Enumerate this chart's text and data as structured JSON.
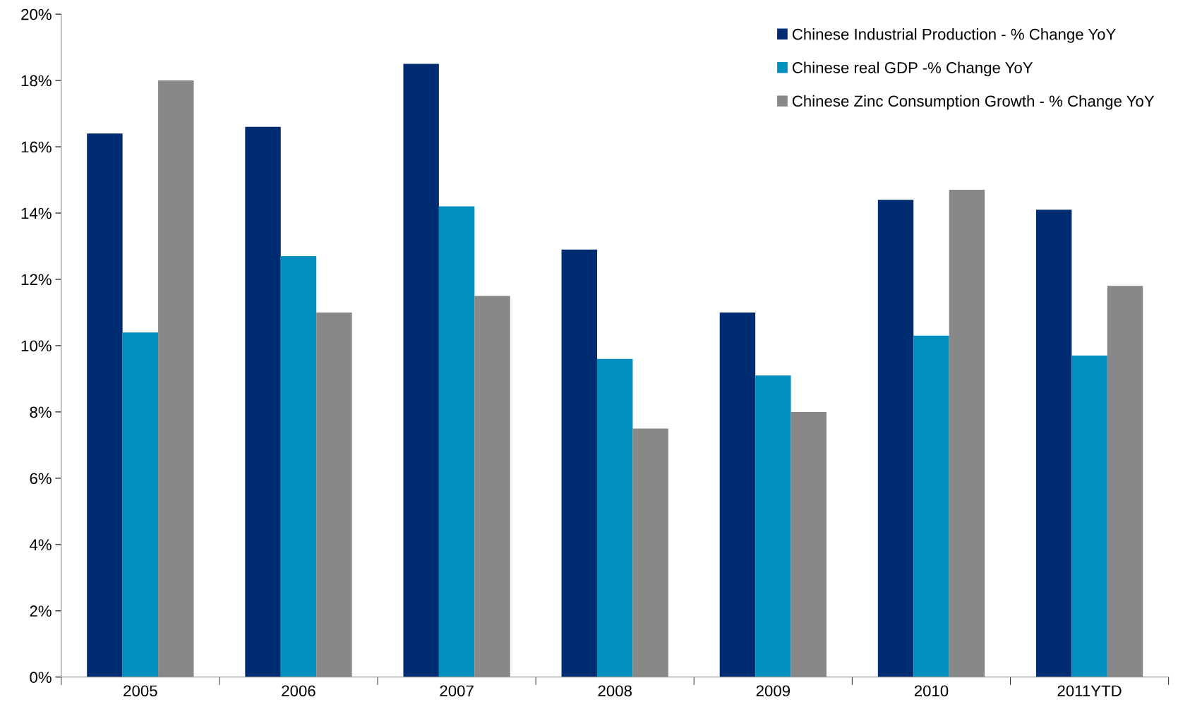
{
  "chart_data": {
    "type": "bar",
    "categories": [
      "2005",
      "2006",
      "2007",
      "2008",
      "2009",
      "2010",
      "2011YTD"
    ],
    "series": [
      {
        "name": "Chinese Industrial Production - % Change YoY",
        "color": "#002d72",
        "values": [
          16.4,
          16.6,
          18.5,
          12.9,
          11.0,
          14.4,
          14.1
        ]
      },
      {
        "name": "Chinese real GDP -% Change YoY",
        "color": "#0090c0",
        "values": [
          10.4,
          12.7,
          14.2,
          9.6,
          9.1,
          10.3,
          9.7
        ]
      },
      {
        "name": "Chinese Zinc Consumption Growth - % Change YoY",
        "color": "#888888",
        "values": [
          18.0,
          11.0,
          11.5,
          7.5,
          8.0,
          14.7,
          11.8
        ]
      }
    ],
    "ylim": [
      0,
      20
    ],
    "yticks": [
      {
        "value": 0,
        "label": "0%"
      },
      {
        "value": 2,
        "label": "2%"
      },
      {
        "value": 4,
        "label": "4%"
      },
      {
        "value": 6,
        "label": "6%"
      },
      {
        "value": 8,
        "label": "8%"
      },
      {
        "value": 10,
        "label": "10%"
      },
      {
        "value": 12,
        "label": "12%"
      },
      {
        "value": 14,
        "label": "14%"
      },
      {
        "value": 16,
        "label": "16%"
      },
      {
        "value": 18,
        "label": "18%"
      },
      {
        "value": 20,
        "label": "20%"
      }
    ],
    "grid": false,
    "legend": "top right"
  }
}
